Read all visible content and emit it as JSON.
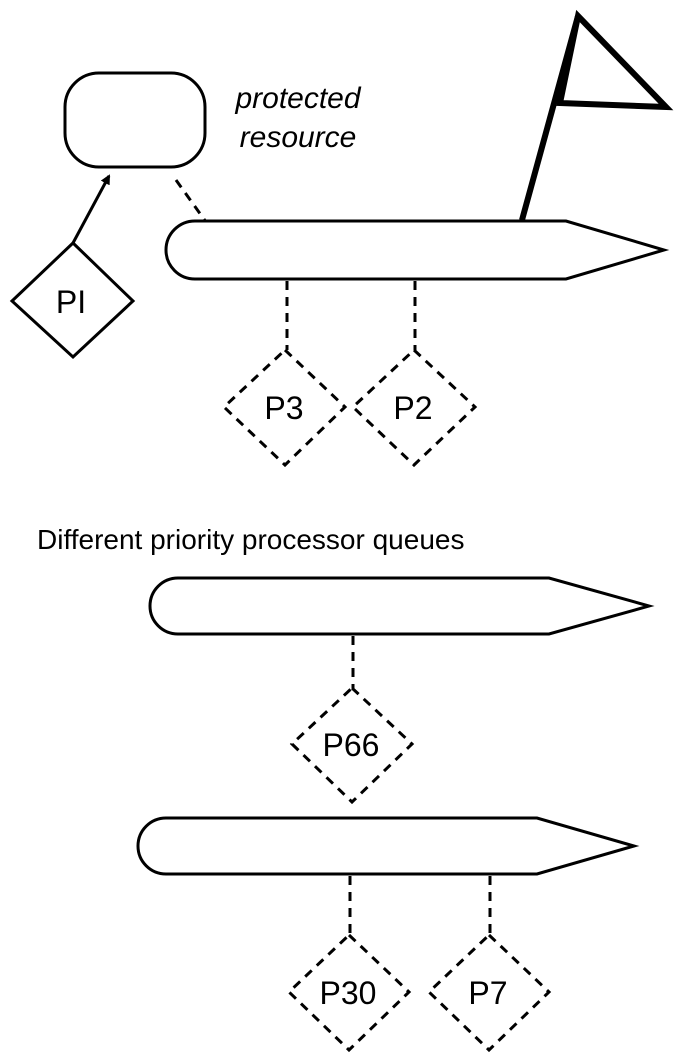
{
  "diagram": {
    "resource_label_line1": "protected",
    "resource_label_line2": "resource",
    "caption": "Different priority processor queues",
    "holder_process": "PI",
    "top_queue_processes": [
      "P3",
      "P2"
    ],
    "middle_queue_processes": [
      "P66"
    ],
    "bottom_queue_processes": [
      "P30",
      "P7"
    ],
    "stroke_color": "#000000",
    "background_color": "#ffffff"
  }
}
